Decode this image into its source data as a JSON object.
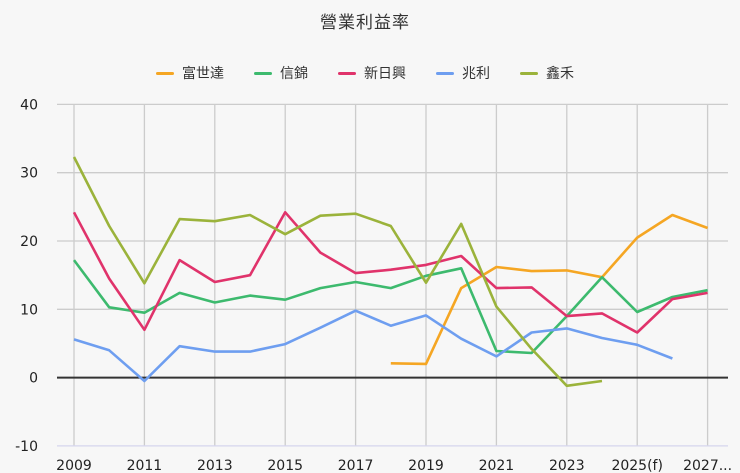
{
  "chart_data": {
    "type": "line",
    "title": "營業利益率",
    "xlabel": "",
    "ylabel": "",
    "ylim": [
      -10,
      40
    ],
    "yticks": [
      40,
      30,
      20,
      10,
      0,
      -10
    ],
    "grid": true,
    "legend_position": "top",
    "x": [
      "2009",
      "2010",
      "2011",
      "2012",
      "2013",
      "2014",
      "2015",
      "2016",
      "2017",
      "2018",
      "2019",
      "2020",
      "2021",
      "2022",
      "2023",
      "2024",
      "2025(f)",
      "2026",
      "2027..."
    ],
    "xtick_labels": [
      "2009",
      "2011",
      "2013",
      "2015",
      "2017",
      "2019",
      "2021",
      "2023",
      "2025(f)",
      "2027..."
    ],
    "series": [
      {
        "name": "富世達",
        "color": "#f5a623",
        "values": [
          null,
          null,
          null,
          null,
          null,
          null,
          null,
          null,
          null,
          2.1,
          2.0,
          13.1,
          16.2,
          15.6,
          15.7,
          14.7,
          20.5,
          23.8,
          21.9
        ]
      },
      {
        "name": "信錦",
        "color": "#3dba6e",
        "values": [
          17.2,
          10.3,
          9.5,
          12.4,
          11.0,
          12.0,
          11.4,
          13.1,
          14.0,
          13.1,
          14.9,
          16.0,
          3.9,
          3.6,
          9.0,
          14.7,
          9.6,
          11.8,
          12.8
        ]
      },
      {
        "name": "新日興",
        "color": "#e0336b",
        "values": [
          24.2,
          14.5,
          7.0,
          17.2,
          14.0,
          15.0,
          24.2,
          18.3,
          15.3,
          15.8,
          16.5,
          17.8,
          13.1,
          13.2,
          9.0,
          9.4,
          6.6,
          11.5,
          12.4
        ]
      },
      {
        "name": "兆利",
        "color": "#6e9ef0",
        "values": [
          5.6,
          4.0,
          -0.5,
          4.6,
          3.8,
          3.8,
          4.9,
          7.3,
          9.8,
          7.6,
          9.1,
          5.7,
          3.1,
          6.6,
          7.2,
          5.8,
          4.8,
          2.8,
          null
        ]
      },
      {
        "name": "鑫禾",
        "color": "#9bb33b",
        "values": [
          32.3,
          22.2,
          13.8,
          23.2,
          22.9,
          23.8,
          21.0,
          23.7,
          24.0,
          22.2,
          13.9,
          22.5,
          10.4,
          4.2,
          -1.2,
          -0.5,
          null,
          null,
          null
        ]
      }
    ]
  }
}
